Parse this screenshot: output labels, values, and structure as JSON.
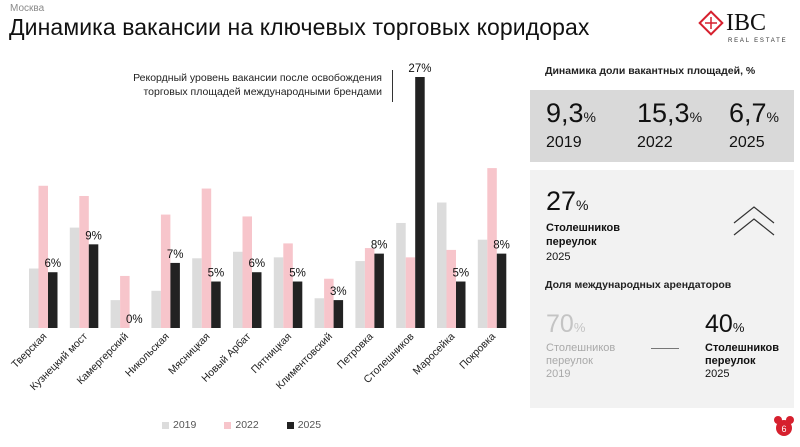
{
  "header": {
    "city": "Москва",
    "title": "Динамика вакансии на ключевых торговых коридорах"
  },
  "logo": {
    "text": "IBC",
    "sub": "REAL ESTATE"
  },
  "colors": {
    "c2019": "#dcdcdc",
    "c2022": "#f7c5cb",
    "c2025": "#222222",
    "accent": "#d6202e"
  },
  "chart_data": {
    "type": "bar",
    "categories": [
      "Тверская",
      "Кузнецкий мост",
      "Камергерский",
      "Никольская",
      "Мясницкая",
      "Новый Арбат",
      "Пятницкая",
      "Климентовский",
      "Петровка",
      "Столешников",
      "Маросейка",
      "Покровка"
    ],
    "series": [
      {
        "name": "2019",
        "values": [
          6.4,
          10.8,
          3.0,
          4.0,
          7.5,
          8.2,
          7.6,
          3.2,
          7.2,
          11.3,
          13.5,
          9.5
        ]
      },
      {
        "name": "2022",
        "values": [
          15.3,
          14.2,
          5.6,
          12.2,
          15.0,
          12.0,
          9.1,
          5.3,
          8.6,
          7.6,
          8.4,
          17.2
        ]
      },
      {
        "name": "2025",
        "values": [
          6,
          9,
          0,
          7,
          5,
          6,
          5,
          3,
          8,
          27,
          5,
          8
        ]
      }
    ],
    "data_labels_2025": [
      "6%",
      "9%",
      "0%",
      "7%",
      "5%",
      "6%",
      "5%",
      "3%",
      "8%",
      "27%",
      "5%",
      "8%"
    ],
    "ylim": [
      0,
      28
    ],
    "annotation": "Рекордный уровень вакансии после освобождения торговых площадей международными брендами"
  },
  "legend": [
    "2019",
    "2022",
    "2025"
  ],
  "panel": {
    "vacancy_title": "Динамика доли вакантных площадей, %",
    "stats": [
      {
        "value": "9,3",
        "unit": "%",
        "year": "2019"
      },
      {
        "value": "15,3",
        "unit": "%",
        "year": "2022"
      },
      {
        "value": "6,7",
        "unit": "%",
        "year": "2025"
      }
    ],
    "highlight": {
      "value": "27",
      "unit": "%",
      "street_line1": "Столешников",
      "street_line2": "переулок",
      "year": "2025"
    },
    "intl_title": "Доля международных арендаторов",
    "intl_old": {
      "value": "70",
      "unit": "%",
      "line1": "Столешников",
      "line2": "переулок",
      "year": "2019"
    },
    "intl_new": {
      "value": "40",
      "unit": "%",
      "line1": "Столешников",
      "line2": "переулок",
      "year": "2025"
    }
  },
  "page_number": "6"
}
